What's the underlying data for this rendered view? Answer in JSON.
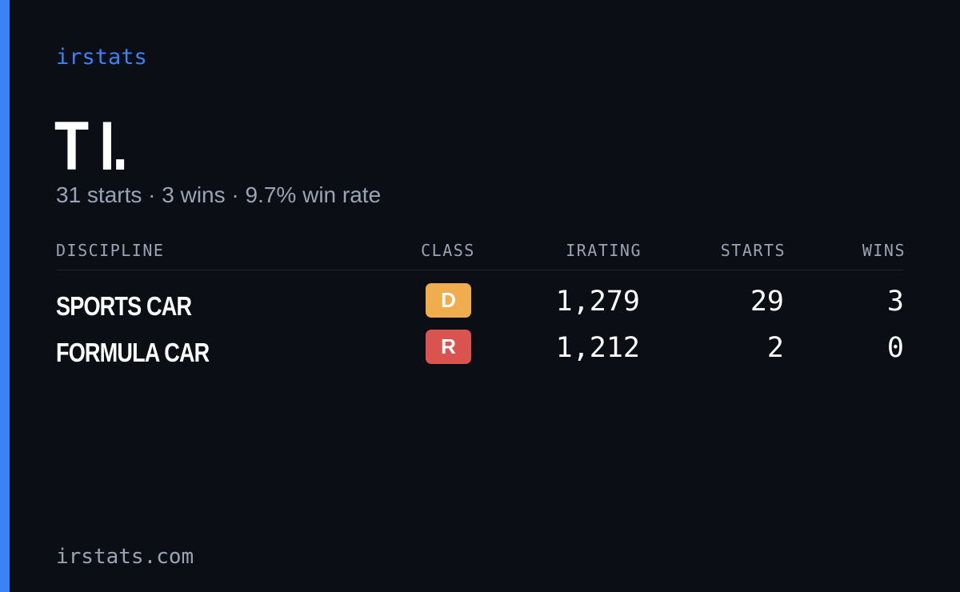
{
  "brand": "irstats",
  "name": "T I.",
  "summary": "31 starts · 3 wins · 9.7% win rate",
  "table": {
    "headers": [
      "DISCIPLINE",
      "CLASS",
      "IRATING",
      "STARTS",
      "WINS"
    ],
    "rows": [
      [
        "SPORTS CAR",
        "D",
        "1,279",
        "29",
        "3"
      ],
      [
        "FORMULA CAR",
        "R",
        "1,212",
        "2",
        "0"
      ]
    ]
  },
  "footer": "irstats.com"
}
